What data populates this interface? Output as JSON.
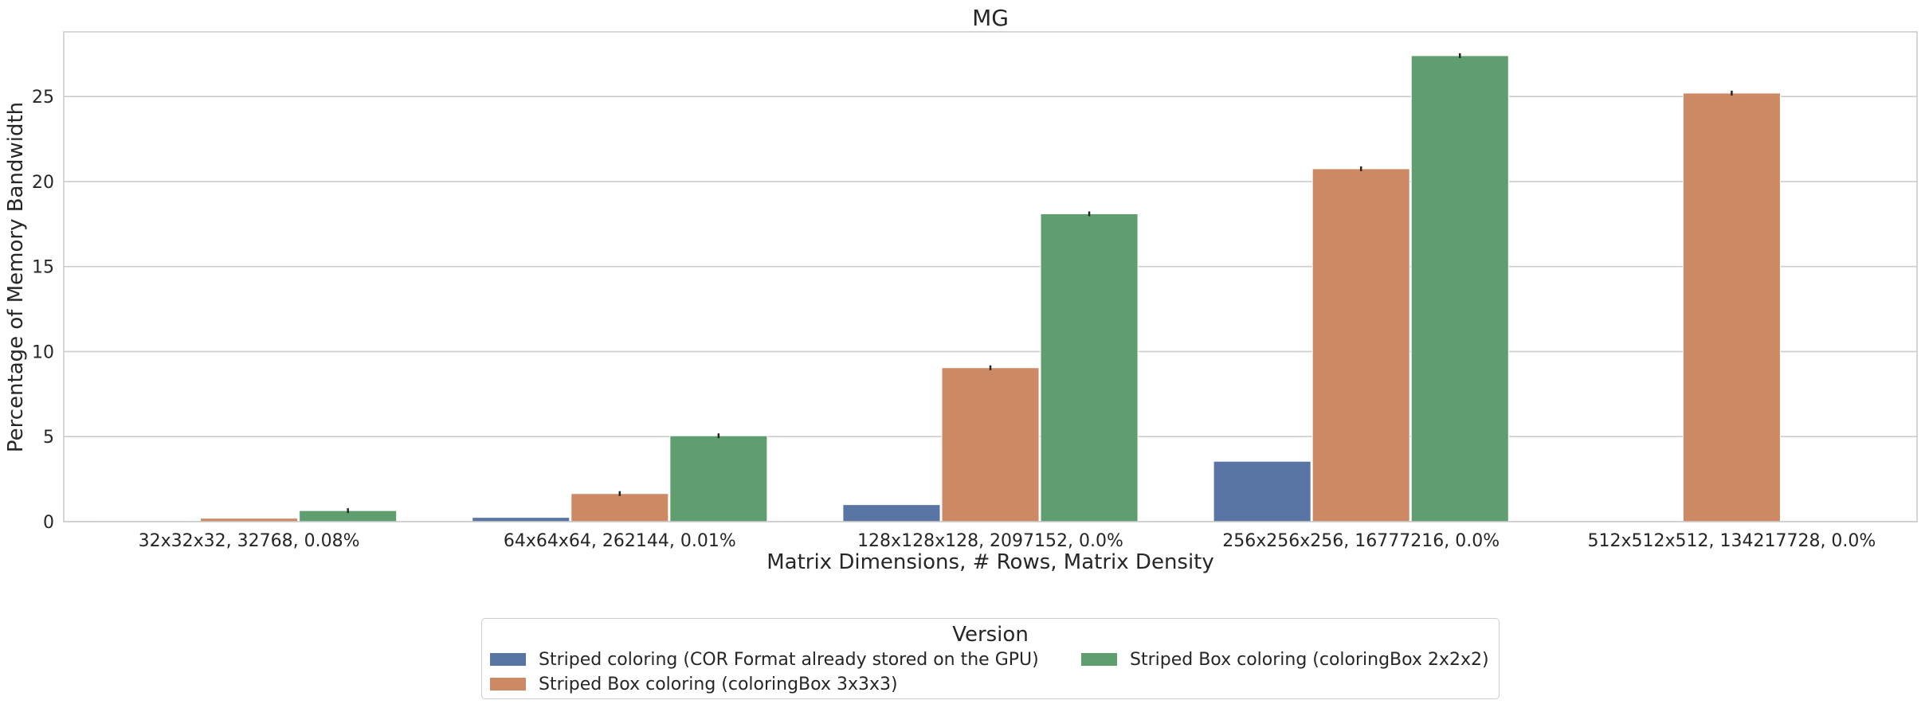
{
  "chart_data": {
    "type": "bar",
    "title": "MG",
    "xlabel": "Matrix Dimensions, # Rows, Matrix Density",
    "ylabel": "Percentage of Memory Bandwidth",
    "ylim": [
      0,
      28.8
    ],
    "yticks": [
      0,
      5,
      10,
      15,
      20,
      25
    ],
    "grid": true,
    "legend_position": "bottom-center",
    "legend_title": "Version",
    "categories": [
      "32x32x32, 32768, 0.08%",
      "64x64x64, 262144, 0.01%",
      "128x128x128, 2097152, 0.0%",
      "256x256x256, 16777216, 0.0%",
      "512x512x512, 134217728, 0.0%"
    ],
    "series": [
      {
        "name": "Striped coloring (COR Format already stored on the GPU)",
        "color": "#5875a4",
        "values": [
          0.05,
          0.25,
          1.0,
          3.55,
          null
        ]
      },
      {
        "name": "Striped Box coloring (coloringBox 3x3x3)",
        "color": "#cc8963",
        "values": [
          0.2,
          1.65,
          9.05,
          20.75,
          25.2
        ]
      },
      {
        "name": "Striped Box coloring (coloringBox 2x2x2)",
        "color": "#5f9e6e",
        "values": [
          0.65,
          5.05,
          18.1,
          27.4,
          null
        ]
      }
    ]
  }
}
